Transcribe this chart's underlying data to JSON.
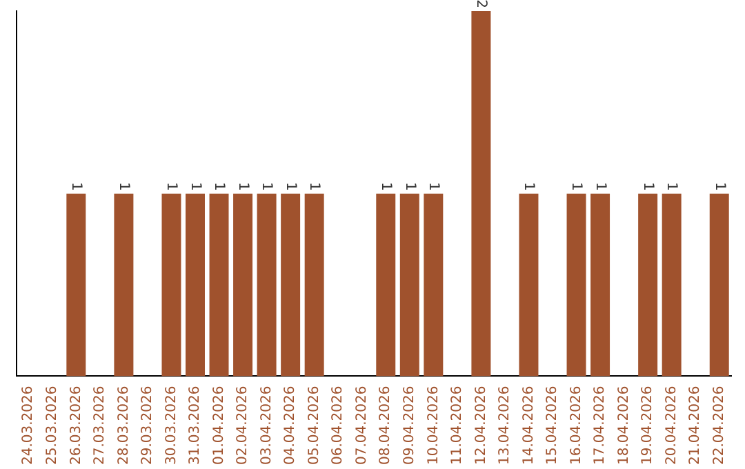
{
  "chart_data": {
    "type": "bar",
    "categories": [
      "24.03.2026",
      "25.03.2026",
      "26.03.2026",
      "27.03.2026",
      "28.03.2026",
      "29.03.2026",
      "30.03.2026",
      "31.03.2026",
      "01.04.2026",
      "02.04.2026",
      "03.04.2026",
      "04.04.2026",
      "05.04.2026",
      "06.04.2026",
      "07.04.2026",
      "08.04.2026",
      "09.04.2026",
      "10.04.2026",
      "11.04.2026",
      "12.04.2026",
      "13.04.2026",
      "14.04.2026",
      "15.04.2026",
      "16.04.2026",
      "17.04.2026",
      "18.04.2026",
      "19.04.2026",
      "20.04.2026",
      "21.04.2026",
      "22.04.2026"
    ],
    "values": [
      0,
      0,
      1,
      0,
      1,
      0,
      1,
      1,
      1,
      1,
      1,
      1,
      1,
      0,
      0,
      1,
      1,
      1,
      0,
      2,
      0,
      1,
      0,
      1,
      1,
      0,
      1,
      1,
      0,
      1
    ],
    "value_labels": [
      null,
      null,
      "1",
      null,
      "1",
      null,
      "1",
      "1",
      "1",
      "1",
      "1",
      "1",
      "1",
      null,
      null,
      "1",
      "1",
      "1",
      null,
      "2",
      null,
      "1",
      null,
      "1",
      "1",
      null,
      "1",
      "1",
      null,
      "1"
    ],
    "color": "#a0522d",
    "grid": false,
    "legend": false,
    "tick_labels": "x"
  }
}
